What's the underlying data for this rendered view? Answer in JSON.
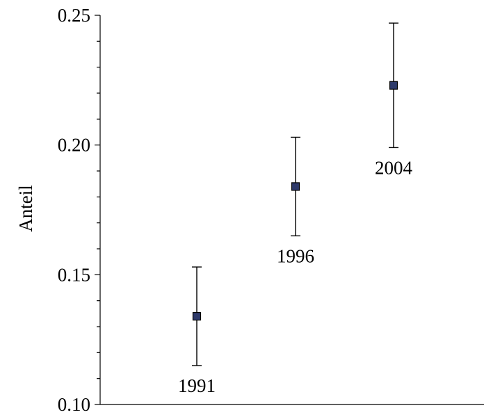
{
  "chart_data": {
    "type": "scatter",
    "title": "",
    "xlabel": "",
    "ylabel": "Anteil",
    "ylim": [
      0.1,
      0.25
    ],
    "y_ticks": [
      "0.10",
      "0.15",
      "0.20",
      "0.25"
    ],
    "y_minor_step": 0.01,
    "grid": false,
    "marker": {
      "shape": "square",
      "fill": "#2e3a6b",
      "stroke": "#000000"
    },
    "points": [
      {
        "label": "1991",
        "y": 0.134,
        "y_low": 0.115,
        "y_high": 0.153
      },
      {
        "label": "1996",
        "y": 0.184,
        "y_low": 0.165,
        "y_high": 0.203
      },
      {
        "label": "2004",
        "y": 0.223,
        "y_low": 0.199,
        "y_high": 0.247
      }
    ]
  }
}
